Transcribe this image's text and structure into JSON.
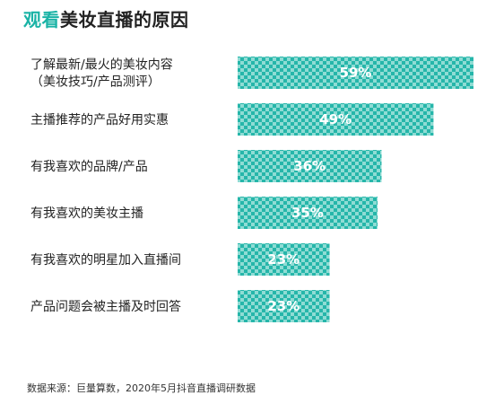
{
  "title": {
    "accent": "观看",
    "rest": "美妆直播的原因"
  },
  "colors": {
    "accent": "#1ab3a6",
    "bar": "#26b6aa",
    "bar_pattern": "#8fdcd4"
  },
  "chart_data": {
    "type": "bar",
    "orientation": "horizontal",
    "title": "观看美妆直播的原因",
    "categories": [
      [
        "了解最新/最火的美妆内容",
        "（美妆技巧/产品测评）"
      ],
      [
        "主播推荐的产品好用实惠"
      ],
      [
        "有我喜欢的品牌/产品"
      ],
      [
        "有我喜欢的美妆主播"
      ],
      [
        "有我喜欢的明星加入直播间"
      ],
      [
        "产品问题会被主播及时回答"
      ]
    ],
    "values": [
      59,
      49,
      36,
      35,
      23,
      23
    ],
    "data_labels": [
      "59%",
      "49%",
      "36%",
      "35%",
      "23%",
      "23%"
    ],
    "unit": "%",
    "xlim": [
      0,
      59
    ],
    "grid": false,
    "legend": "none"
  },
  "source": "数据来源：巨量算数，2020年5月抖音直播调研数据"
}
